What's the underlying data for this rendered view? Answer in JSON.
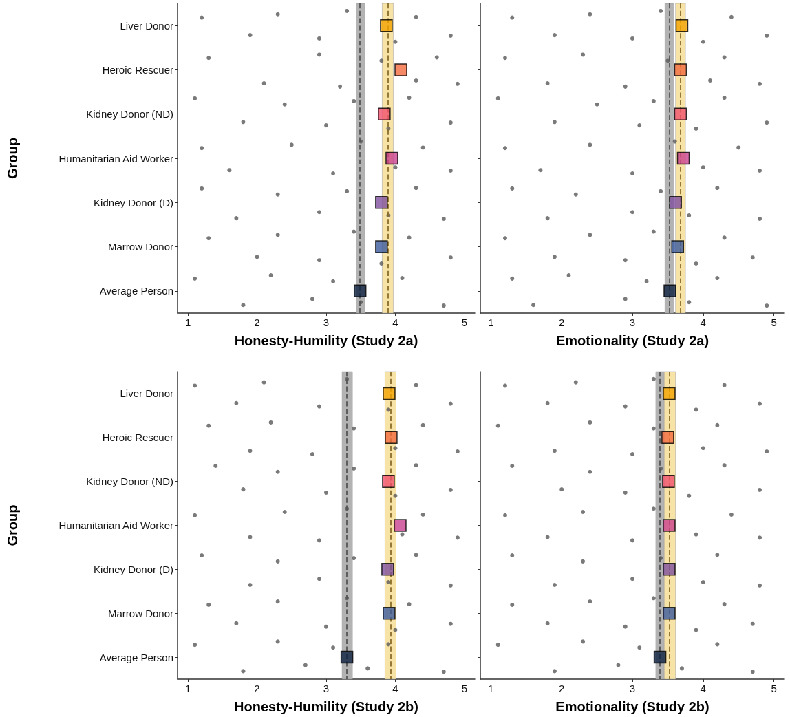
{
  "chart_data": [
    {
      "type": "scatter",
      "orientation": "horizontal",
      "xlabel": "Honesty-Humility (Study 2a)",
      "ylabel": "Group",
      "categories": [
        "Liver Donor",
        "Heroic Rescuer",
        "Kidney Donor (ND)",
        "Humanitarian Aid Worker",
        "Kidney Donor (D)",
        "Marrow Donor",
        "Average Person"
      ],
      "xlim": [
        0.85,
        5.15
      ],
      "xticks": [
        1,
        2,
        3,
        4,
        5
      ],
      "grid": false,
      "marker": "circle",
      "bands": [
        {
          "axis": "x",
          "from": 3.44,
          "to": 3.56,
          "color": "#b3b3b3"
        },
        {
          "axis": "x",
          "from": 3.81,
          "to": 3.97,
          "color": "#f8e3a6"
        }
      ],
      "ref_lines": [
        {
          "axis": "x",
          "value": 3.49,
          "color": "#555555",
          "line_style": "dashed"
        },
        {
          "axis": "x",
          "value": 3.89,
          "color": "#8a6d2a",
          "line_style": "dashed"
        }
      ],
      "series": [
        {
          "type": "scatter",
          "color": "#595959",
          "x": [
            "Liver Donor",
            "Liver Donor",
            "Liver Donor",
            "Liver Donor",
            "Liver Donor",
            "Liver Donor",
            "Liver Donor",
            "Liver Donor",
            "Heroic Rescuer",
            "Heroic Rescuer",
            "Heroic Rescuer",
            "Heroic Rescuer",
            "Heroic Rescuer",
            "Heroic Rescuer",
            "Heroic Rescuer",
            "Heroic Rescuer",
            "Kidney Donor (ND)",
            "Kidney Donor (ND)",
            "Kidney Donor (ND)",
            "Kidney Donor (ND)",
            "Kidney Donor (ND)",
            "Kidney Donor (ND)",
            "Kidney Donor (ND)",
            "Kidney Donor (ND)",
            "Humanitarian Aid Worker",
            "Humanitarian Aid Worker",
            "Humanitarian Aid Worker",
            "Humanitarian Aid Worker",
            "Humanitarian Aid Worker",
            "Humanitarian Aid Worker",
            "Humanitarian Aid Worker",
            "Humanitarian Aid Worker",
            "Kidney Donor (D)",
            "Kidney Donor (D)",
            "Kidney Donor (D)",
            "Kidney Donor (D)",
            "Kidney Donor (D)",
            "Kidney Donor (D)",
            "Kidney Donor (D)",
            "Kidney Donor (D)",
            "Marrow Donor",
            "Marrow Donor",
            "Marrow Donor",
            "Marrow Donor",
            "Marrow Donor",
            "Marrow Donor",
            "Marrow Donor",
            "Marrow Donor",
            "Average Person",
            "Average Person",
            "Average Person",
            "Average Person",
            "Average Person",
            "Average Person",
            "Average Person",
            "Average Person"
          ],
          "values": [
            1.2,
            1.9,
            2.3,
            2.9,
            3.3,
            4.0,
            4.3,
            4.8,
            1.3,
            2.1,
            2.9,
            3.2,
            3.8,
            4.3,
            4.6,
            4.9,
            1.1,
            1.8,
            2.4,
            3.0,
            3.4,
            3.9,
            4.2,
            4.8,
            1.2,
            1.6,
            2.5,
            3.1,
            3.5,
            4.0,
            4.4,
            4.8,
            1.2,
            1.7,
            2.3,
            2.9,
            3.3,
            3.9,
            4.3,
            4.7,
            1.3,
            2.0,
            2.3,
            2.9,
            3.4,
            3.8,
            4.2,
            4.8,
            1.1,
            1.8,
            2.2,
            2.8,
            3.1,
            3.5,
            4.1,
            4.7
          ]
        },
        {
          "type": "scatter",
          "marker": "square",
          "x": [
            "Liver Donor",
            "Heroic Rescuer",
            "Kidney Donor (ND)",
            "Humanitarian Aid Worker",
            "Kidney Donor (D)",
            "Marrow Donor",
            "Average Person"
          ],
          "values": [
            3.87,
            4.08,
            3.84,
            3.95,
            3.8,
            3.8,
            3.49
          ],
          "colors": [
            "#f4a300",
            "#f26a3f",
            "#f0506e",
            "#c9418e",
            "#7e4f9e",
            "#3b5a9e",
            "#0d2240"
          ]
        }
      ]
    },
    {
      "type": "scatter",
      "orientation": "horizontal",
      "xlabel": "Emotionality (Study 2a)",
      "tick_labels": "x",
      "categories": [
        "Liver Donor",
        "Heroic Rescuer",
        "Kidney Donor (ND)",
        "Humanitarian Aid Worker",
        "Kidney Donor (D)",
        "Marrow Donor",
        "Average Person"
      ],
      "xlim": [
        0.85,
        5.15
      ],
      "xticks": [
        1,
        2,
        3,
        4,
        5
      ],
      "grid": false,
      "marker": "circle",
      "bands": [
        {
          "axis": "x",
          "from": 3.46,
          "to": 3.58,
          "color": "#b3b3b3"
        },
        {
          "axis": "x",
          "from": 3.61,
          "to": 3.75,
          "color": "#f8e3a6"
        }
      ],
      "ref_lines": [
        {
          "axis": "x",
          "value": 3.52,
          "color": "#555555",
          "line_style": "dashed"
        },
        {
          "axis": "x",
          "value": 3.68,
          "color": "#8a6d2a",
          "line_style": "dashed"
        }
      ],
      "series": [
        {
          "type": "scatter",
          "color": "#595959",
          "x": [
            "Liver Donor",
            "Liver Donor",
            "Liver Donor",
            "Liver Donor",
            "Liver Donor",
            "Liver Donor",
            "Liver Donor",
            "Liver Donor",
            "Heroic Rescuer",
            "Heroic Rescuer",
            "Heroic Rescuer",
            "Heroic Rescuer",
            "Heroic Rescuer",
            "Heroic Rescuer",
            "Heroic Rescuer",
            "Heroic Rescuer",
            "Kidney Donor (ND)",
            "Kidney Donor (ND)",
            "Kidney Donor (ND)",
            "Kidney Donor (ND)",
            "Kidney Donor (ND)",
            "Kidney Donor (ND)",
            "Kidney Donor (ND)",
            "Kidney Donor (ND)",
            "Humanitarian Aid Worker",
            "Humanitarian Aid Worker",
            "Humanitarian Aid Worker",
            "Humanitarian Aid Worker",
            "Humanitarian Aid Worker",
            "Humanitarian Aid Worker",
            "Humanitarian Aid Worker",
            "Humanitarian Aid Worker",
            "Kidney Donor (D)",
            "Kidney Donor (D)",
            "Kidney Donor (D)",
            "Kidney Donor (D)",
            "Kidney Donor (D)",
            "Kidney Donor (D)",
            "Kidney Donor (D)",
            "Kidney Donor (D)",
            "Marrow Donor",
            "Marrow Donor",
            "Marrow Donor",
            "Marrow Donor",
            "Marrow Donor",
            "Marrow Donor",
            "Marrow Donor",
            "Marrow Donor",
            "Average Person",
            "Average Person",
            "Average Person",
            "Average Person",
            "Average Person",
            "Average Person",
            "Average Person",
            "Average Person"
          ],
          "values": [
            1.3,
            1.9,
            2.4,
            3.0,
            3.4,
            4.0,
            4.4,
            4.9,
            1.2,
            1.8,
            2.3,
            2.9,
            3.5,
            4.1,
            4.3,
            4.8,
            1.1,
            1.9,
            2.5,
            3.1,
            3.3,
            3.9,
            4.3,
            4.9,
            1.2,
            1.7,
            2.4,
            3.0,
            3.6,
            4.0,
            4.5,
            4.8,
            1.3,
            1.8,
            2.2,
            3.0,
            3.4,
            3.8,
            4.2,
            4.8,
            1.2,
            1.9,
            2.4,
            2.9,
            3.3,
            3.9,
            4.3,
            4.7,
            1.3,
            1.6,
            2.1,
            2.9,
            3.2,
            3.8,
            4.2,
            4.9
          ]
        },
        {
          "type": "scatter",
          "marker": "square",
          "x": [
            "Liver Donor",
            "Heroic Rescuer",
            "Kidney Donor (ND)",
            "Humanitarian Aid Worker",
            "Kidney Donor (D)",
            "Marrow Donor",
            "Average Person"
          ],
          "values": [
            3.7,
            3.68,
            3.68,
            3.72,
            3.61,
            3.64,
            3.53
          ],
          "colors": [
            "#f4a300",
            "#f26a3f",
            "#f0506e",
            "#c9418e",
            "#7e4f9e",
            "#3b5a9e",
            "#0d2240"
          ]
        }
      ]
    },
    {
      "type": "scatter",
      "orientation": "horizontal",
      "xlabel": "Honesty-Humility (Study 2b)",
      "ylabel": "Group",
      "categories": [
        "Liver Donor",
        "Heroic Rescuer",
        "Kidney Donor (ND)",
        "Humanitarian Aid Worker",
        "Kidney Donor (D)",
        "Marrow Donor",
        "Average Person"
      ],
      "xlim": [
        0.85,
        5.15
      ],
      "xticks": [
        1,
        2,
        3,
        4,
        5
      ],
      "grid": false,
      "marker": "circle",
      "bands": [
        {
          "axis": "x",
          "from": 3.23,
          "to": 3.38,
          "color": "#b3b3b3"
        },
        {
          "axis": "x",
          "from": 3.85,
          "to": 4.01,
          "color": "#f8e3a6"
        }
      ],
      "ref_lines": [
        {
          "axis": "x",
          "value": 3.3,
          "color": "#555555",
          "line_style": "dashed"
        },
        {
          "axis": "x",
          "value": 3.93,
          "color": "#8a6d2a",
          "line_style": "dashed"
        }
      ],
      "series": [
        {
          "type": "scatter",
          "color": "#595959",
          "x": [
            "Liver Donor",
            "Liver Donor",
            "Liver Donor",
            "Liver Donor",
            "Liver Donor",
            "Liver Donor",
            "Liver Donor",
            "Liver Donor",
            "Heroic Rescuer",
            "Heroic Rescuer",
            "Heroic Rescuer",
            "Heroic Rescuer",
            "Heroic Rescuer",
            "Heroic Rescuer",
            "Heroic Rescuer",
            "Heroic Rescuer",
            "Kidney Donor (ND)",
            "Kidney Donor (ND)",
            "Kidney Donor (ND)",
            "Kidney Donor (ND)",
            "Kidney Donor (ND)",
            "Kidney Donor (ND)",
            "Kidney Donor (ND)",
            "Kidney Donor (ND)",
            "Humanitarian Aid Worker",
            "Humanitarian Aid Worker",
            "Humanitarian Aid Worker",
            "Humanitarian Aid Worker",
            "Humanitarian Aid Worker",
            "Humanitarian Aid Worker",
            "Humanitarian Aid Worker",
            "Humanitarian Aid Worker",
            "Kidney Donor (D)",
            "Kidney Donor (D)",
            "Kidney Donor (D)",
            "Kidney Donor (D)",
            "Kidney Donor (D)",
            "Kidney Donor (D)",
            "Kidney Donor (D)",
            "Kidney Donor (D)",
            "Marrow Donor",
            "Marrow Donor",
            "Marrow Donor",
            "Marrow Donor",
            "Marrow Donor",
            "Marrow Donor",
            "Marrow Donor",
            "Marrow Donor",
            "Average Person",
            "Average Person",
            "Average Person",
            "Average Person",
            "Average Person",
            "Average Person",
            "Average Person",
            "Average Person"
          ],
          "values": [
            1.1,
            1.7,
            2.1,
            2.9,
            3.3,
            3.9,
            4.3,
            4.8,
            1.3,
            1.9,
            2.2,
            2.8,
            3.4,
            4.0,
            4.4,
            4.9,
            1.4,
            1.8,
            2.3,
            3.0,
            3.4,
            4.0,
            4.3,
            4.8,
            1.1,
            1.9,
            2.4,
            2.9,
            3.3,
            4.1,
            4.4,
            4.9,
            1.2,
            1.9,
            2.3,
            2.9,
            3.4,
            3.9,
            4.3,
            4.8,
            1.3,
            1.7,
            2.3,
            3.0,
            3.3,
            4.0,
            4.2,
            4.8,
            1.1,
            1.8,
            2.3,
            2.7,
            3.1,
            3.6,
            3.9,
            4.7
          ]
        },
        {
          "type": "scatter",
          "marker": "square",
          "x": [
            "Liver Donor",
            "Heroic Rescuer",
            "Kidney Donor (ND)",
            "Humanitarian Aid Worker",
            "Kidney Donor (D)",
            "Marrow Donor",
            "Average Person"
          ],
          "values": [
            3.91,
            3.94,
            3.9,
            4.07,
            3.89,
            3.91,
            3.3
          ],
          "colors": [
            "#f4a300",
            "#f26a3f",
            "#f0506e",
            "#c9418e",
            "#7e4f9e",
            "#3b5a9e",
            "#0d2240"
          ]
        }
      ]
    },
    {
      "type": "scatter",
      "orientation": "horizontal",
      "xlabel": "Emotionality (Study 2b)",
      "tick_labels": "x",
      "categories": [
        "Liver Donor",
        "Heroic Rescuer",
        "Kidney Donor (ND)",
        "Humanitarian Aid Worker",
        "Kidney Donor (D)",
        "Marrow Donor",
        "Average Person"
      ],
      "xlim": [
        0.85,
        5.15
      ],
      "xticks": [
        1,
        2,
        3,
        4,
        5
      ],
      "grid": false,
      "marker": "circle",
      "bands": [
        {
          "axis": "x",
          "from": 3.33,
          "to": 3.45,
          "color": "#b3b3b3"
        },
        {
          "axis": "x",
          "from": 3.45,
          "to": 3.61,
          "color": "#f8e3a6"
        }
      ],
      "ref_lines": [
        {
          "axis": "x",
          "value": 3.39,
          "color": "#555555",
          "line_style": "dashed"
        },
        {
          "axis": "x",
          "value": 3.52,
          "color": "#8a6d2a",
          "line_style": "dashed"
        }
      ],
      "series": [
        {
          "type": "scatter",
          "color": "#595959",
          "x": [
            "Liver Donor",
            "Liver Donor",
            "Liver Donor",
            "Liver Donor",
            "Liver Donor",
            "Liver Donor",
            "Liver Donor",
            "Liver Donor",
            "Heroic Rescuer",
            "Heroic Rescuer",
            "Heroic Rescuer",
            "Heroic Rescuer",
            "Heroic Rescuer",
            "Heroic Rescuer",
            "Heroic Rescuer",
            "Heroic Rescuer",
            "Kidney Donor (ND)",
            "Kidney Donor (ND)",
            "Kidney Donor (ND)",
            "Kidney Donor (ND)",
            "Kidney Donor (ND)",
            "Kidney Donor (ND)",
            "Kidney Donor (ND)",
            "Kidney Donor (ND)",
            "Humanitarian Aid Worker",
            "Humanitarian Aid Worker",
            "Humanitarian Aid Worker",
            "Humanitarian Aid Worker",
            "Humanitarian Aid Worker",
            "Humanitarian Aid Worker",
            "Humanitarian Aid Worker",
            "Humanitarian Aid Worker",
            "Kidney Donor (D)",
            "Kidney Donor (D)",
            "Kidney Donor (D)",
            "Kidney Donor (D)",
            "Kidney Donor (D)",
            "Kidney Donor (D)",
            "Kidney Donor (D)",
            "Kidney Donor (D)",
            "Marrow Donor",
            "Marrow Donor",
            "Marrow Donor",
            "Marrow Donor",
            "Marrow Donor",
            "Marrow Donor",
            "Marrow Donor",
            "Marrow Donor",
            "Average Person",
            "Average Person",
            "Average Person",
            "Average Person",
            "Average Person",
            "Average Person",
            "Average Person",
            "Average Person"
          ],
          "values": [
            1.2,
            1.8,
            2.2,
            2.9,
            3.3,
            3.9,
            4.3,
            4.8,
            1.1,
            1.9,
            2.4,
            3.0,
            3.3,
            4.0,
            4.2,
            4.9,
            1.3,
            2.0,
            2.4,
            2.9,
            3.4,
            3.8,
            4.3,
            4.8,
            1.2,
            1.8,
            2.3,
            3.0,
            3.3,
            3.9,
            4.4,
            4.8,
            1.3,
            1.9,
            2.3,
            3.0,
            3.4,
            4.0,
            4.2,
            4.8,
            1.3,
            1.8,
            2.4,
            2.9,
            3.3,
            3.9,
            4.3,
            4.7,
            1.1,
            1.9,
            2.3,
            2.8,
            3.1,
            3.7,
            4.2,
            4.7
          ]
        },
        {
          "type": "scatter",
          "marker": "square",
          "x": [
            "Liver Donor",
            "Heroic Rescuer",
            "Kidney Donor (ND)",
            "Humanitarian Aid Worker",
            "Kidney Donor (D)",
            "Marrow Donor",
            "Average Person"
          ],
          "values": [
            3.52,
            3.5,
            3.51,
            3.52,
            3.52,
            3.52,
            3.39
          ],
          "colors": [
            "#f4a300",
            "#f26a3f",
            "#f0506e",
            "#c9418e",
            "#7e4f9e",
            "#3b5a9e",
            "#0d2240"
          ]
        }
      ]
    }
  ]
}
